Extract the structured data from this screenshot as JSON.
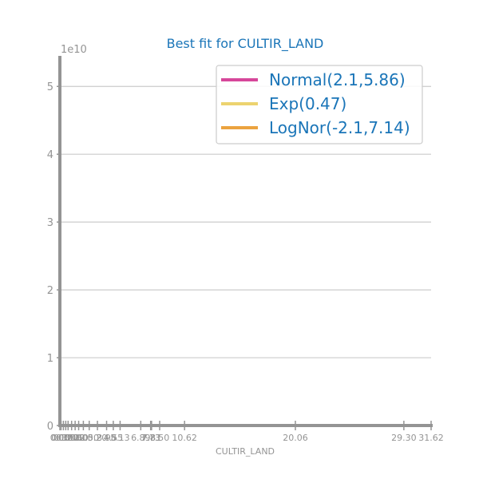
{
  "chart_data": {
    "type": "line",
    "title": "Best fit for CULTIR_LAND",
    "xlabel": "CULTIR_LAND",
    "ylabel": "",
    "y_scale_label": "1e10",
    "y_multiplier": 10000000000,
    "xlim": [
      0,
      31.62
    ],
    "ylim": [
      0,
      5.45
    ],
    "y_ticks": [
      0,
      1,
      2,
      3,
      4,
      5
    ],
    "x_ticks": [
      {
        "value": 0.0,
        "label": "0.00"
      },
      {
        "value": 0.1,
        "label": "0.10"
      },
      {
        "value": 0.3,
        "label": "0.30"
      },
      {
        "value": 0.5,
        "label": "0.50"
      },
      {
        "value": 0.7,
        "label": "0.70"
      },
      {
        "value": 1.0,
        "label": "1.00"
      },
      {
        "value": 1.3,
        "label": "1.30"
      },
      {
        "value": 1.6,
        "label": "1.60"
      },
      {
        "value": 2.0,
        "label": "2.00"
      },
      {
        "value": 2.5,
        "label": "2.50"
      },
      {
        "value": 3.2,
        "label": "3.20"
      },
      {
        "value": 3.98,
        "label": "3.98"
      },
      {
        "value": 4.55,
        "label": "4.55"
      },
      {
        "value": 5.13,
        "label": "5.13"
      },
      {
        "value": 6.89,
        "label": "6.89"
      },
      {
        "value": 7.73,
        "label": "7.73"
      },
      {
        "value": 7.81,
        "label": "7.81"
      },
      {
        "value": 8.5,
        "label": "8.50"
      },
      {
        "value": 10.62,
        "label": "10.62"
      },
      {
        "value": 20.06,
        "label": "20.06"
      },
      {
        "value": 29.3,
        "label": "29.30"
      },
      {
        "value": 31.62,
        "label": "31.62"
      }
    ],
    "grid": {
      "horizontal": true,
      "vertical": false
    },
    "legend_position": "top-right",
    "series": [
      {
        "name": "Normal(2.1,5.86)",
        "color": "#d6479a",
        "values": []
      },
      {
        "name": "Exp(0.47)",
        "color": "#ecd36f",
        "values": []
      },
      {
        "name": "LogNor(-2.1,7.14)",
        "color": "#eba33f",
        "values": []
      }
    ],
    "colors": {
      "axis": "#949494",
      "grid": "#cccccc",
      "title": "#1a75b8",
      "tick_text": "#949494",
      "legend_text": "#1a75b8",
      "legend_border": "#cccccc"
    }
  }
}
